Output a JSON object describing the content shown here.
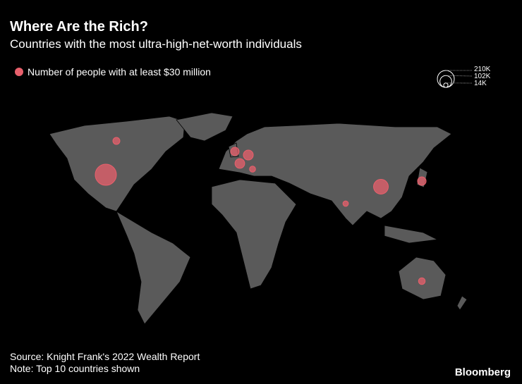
{
  "chart_data": {
    "type": "bubble-map",
    "title": "Where Are the Rich?",
    "subtitle": "Countries with the most ultra-high-net-worth individuals",
    "series": [
      {
        "name": "Number of people with at least $30 million",
        "color": "#e8606c",
        "values": [
          210000,
          23000,
          33000,
          46000,
          44000,
          17000,
          102000,
          34000,
          14000,
          21000
        ]
      }
    ],
    "size_legend": [
      {
        "value": 210000,
        "label": "210K"
      },
      {
        "value": 102000,
        "label": "102K"
      },
      {
        "value": 14000,
        "label": "14K"
      }
    ],
    "source": "Source: Knight Frank's 2022 Wealth Report",
    "note": "Note: Top 10 countries shown",
    "brand": "Bloomberg"
  }
}
